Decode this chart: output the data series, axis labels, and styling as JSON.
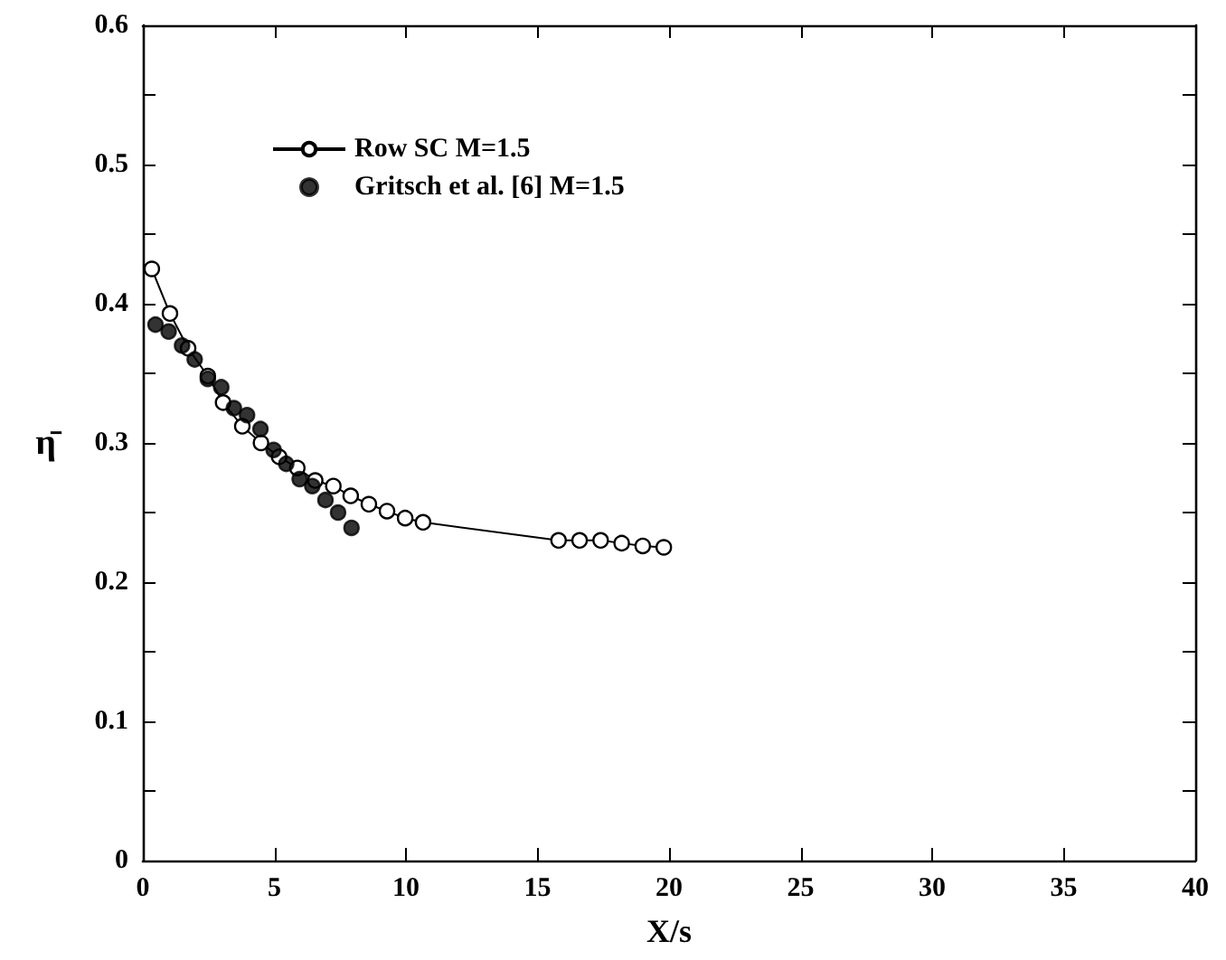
{
  "chart_data": {
    "type": "line",
    "xlabel": "X/s",
    "ylabel": "η̄",
    "xlim": [
      0,
      40
    ],
    "xticks": [
      0,
      5,
      10,
      15,
      20,
      25,
      30,
      35,
      40
    ],
    "ylim": [
      0,
      0.6
    ],
    "yticks": [
      0,
      {
        "value": 0.05,
        "label": null
      },
      0.1,
      {
        "value": 0.15,
        "label": null
      },
      0.2,
      {
        "value": 0.25,
        "label": null
      },
      0.3,
      {
        "value": 0.35,
        "label": null
      },
      0.4,
      {
        "value": 0.45,
        "label": null
      },
      0.5,
      {
        "value": 0.55,
        "label": null
      },
      0.6
    ],
    "grid": false,
    "legend": "top left",
    "line_style": "solid",
    "series": [
      {
        "name": "Row SC M=1.5",
        "color": "#000000",
        "marker": "circle",
        "x": [
          0.34,
          1.03,
          1.72,
          2.47,
          3.05,
          3.78,
          4.49,
          5.18,
          5.87,
          6.55,
          7.24,
          7.9,
          8.59,
          9.28,
          9.97,
          10.65,
          15.8,
          16.6,
          17.4,
          18.2,
          19.0,
          19.8
        ],
        "values": [
          0.425,
          0.393,
          0.368,
          0.348,
          0.329,
          0.312,
          0.3,
          0.29,
          0.282,
          0.273,
          0.269,
          0.262,
          0.256,
          0.251,
          0.246,
          0.243,
          0.23,
          0.23,
          0.23,
          0.228,
          0.226,
          0.225
        ]
      },
      {
        "name": "Gritsch et al. [6] M=1.5",
        "color": "#000000",
        "marker": "circle",
        "type": "scatter",
        "x": [
          0.48,
          0.98,
          1.49,
          1.97,
          2.47,
          2.98,
          3.46,
          3.96,
          4.47,
          4.97,
          5.45,
          5.96,
          6.44,
          6.94,
          7.42,
          7.93
        ],
        "values": [
          0.385,
          0.38,
          0.37,
          0.36,
          0.346,
          0.34,
          0.325,
          0.32,
          0.31,
          0.295,
          0.285,
          0.274,
          0.269,
          0.259,
          0.25,
          0.239
        ]
      }
    ]
  }
}
